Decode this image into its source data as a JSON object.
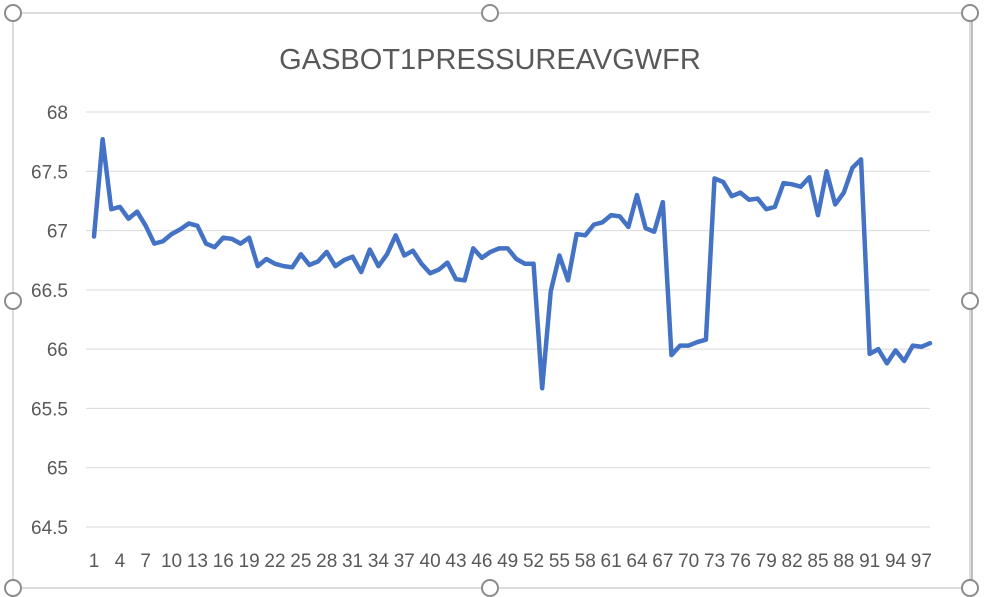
{
  "chart_data": {
    "type": "line",
    "title": "GASBOT1PRESSUREAVGWFR",
    "xlabel": "",
    "ylabel": "",
    "ylim": [
      64.5,
      68
    ],
    "yticks": [
      "64.5",
      "65",
      "65.5",
      "66",
      "66.5",
      "67",
      "67.5",
      "68"
    ],
    "xticks": [
      "1",
      "4",
      "7",
      "10",
      "13",
      "16",
      "19",
      "22",
      "25",
      "28",
      "31",
      "34",
      "37",
      "40",
      "43",
      "46",
      "49",
      "52",
      "55",
      "58",
      "61",
      "64",
      "67",
      "70",
      "73",
      "76",
      "79",
      "82",
      "85",
      "88",
      "91",
      "94",
      "97"
    ],
    "grid": true,
    "legend": "none",
    "color": "#4472c4",
    "x_start": 1,
    "values": [
      66.95,
      67.77,
      67.18,
      67.2,
      67.1,
      67.16,
      67.04,
      66.89,
      66.91,
      66.97,
      67.01,
      67.06,
      67.04,
      66.89,
      66.86,
      66.94,
      66.93,
      66.89,
      66.94,
      66.7,
      66.76,
      66.72,
      66.7,
      66.69,
      66.8,
      66.71,
      66.74,
      66.82,
      66.7,
      66.75,
      66.78,
      66.65,
      66.84,
      66.7,
      66.8,
      66.96,
      66.79,
      66.83,
      66.72,
      66.64,
      66.67,
      66.73,
      66.59,
      66.58,
      66.85,
      66.77,
      66.82,
      66.85,
      66.85,
      66.76,
      66.72,
      66.72,
      65.67,
      66.49,
      66.79,
      66.58,
      66.97,
      66.96,
      67.05,
      67.07,
      67.13,
      67.12,
      67.03,
      67.3,
      67.02,
      66.99,
      67.24,
      65.95,
      66.03,
      66.03,
      66.06,
      66.08,
      67.44,
      67.41,
      67.29,
      67.32,
      67.26,
      67.27,
      67.18,
      67.2,
      67.4,
      67.39,
      67.37,
      67.45,
      67.13,
      67.5,
      67.22,
      67.32,
      67.53,
      67.6,
      65.96,
      66.0,
      65.88,
      65.99,
      65.9,
      66.03,
      66.02,
      66.05
    ]
  }
}
